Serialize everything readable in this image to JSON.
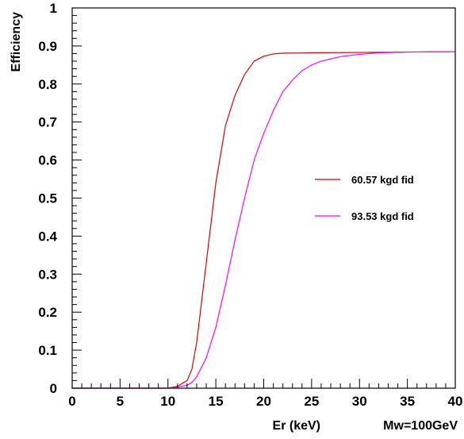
{
  "chart_data": {
    "type": "line",
    "title": "",
    "xlabel": "Er (keV)",
    "xlabel_note": "Mw=100GeV",
    "ylabel": "Efficiency",
    "xlim": [
      0,
      40
    ],
    "ylim": [
      0,
      1
    ],
    "x_ticks": [
      "0",
      "5",
      "10",
      "15",
      "20",
      "25",
      "30",
      "35",
      "40"
    ],
    "y_ticks": [
      "0",
      "0.1",
      "0.2",
      "0.3",
      "0.4",
      "0.5",
      "0.6",
      "0.7",
      "0.8",
      "0.9",
      "1"
    ],
    "grid": false,
    "legend_position": "right",
    "series": [
      {
        "name": "60.57 kgd fid",
        "color": "#dd0000",
        "x": [
          0,
          10,
          11,
          12,
          12.5,
          13,
          14,
          15,
          16,
          17,
          18,
          19,
          20,
          21,
          22,
          25,
          30,
          35,
          40
        ],
        "y": [
          0,
          0,
          0.005,
          0.02,
          0.05,
          0.12,
          0.33,
          0.54,
          0.69,
          0.77,
          0.825,
          0.86,
          0.873,
          0.879,
          0.881,
          0.882,
          0.883,
          0.884,
          0.885
        ]
      },
      {
        "name": "93.53 kgd fid",
        "color": "#ff00ff",
        "x": [
          0,
          10,
          11,
          12,
          12.5,
          13,
          14,
          15,
          16,
          17,
          18,
          19,
          20,
          21,
          22,
          23,
          24,
          25,
          26,
          27,
          28,
          30,
          32,
          35,
          40
        ],
        "y": [
          0,
          0,
          0.003,
          0.008,
          0.015,
          0.03,
          0.08,
          0.16,
          0.27,
          0.39,
          0.5,
          0.6,
          0.67,
          0.73,
          0.78,
          0.81,
          0.835,
          0.85,
          0.86,
          0.866,
          0.872,
          0.878,
          0.882,
          0.884,
          0.885
        ]
      }
    ]
  }
}
